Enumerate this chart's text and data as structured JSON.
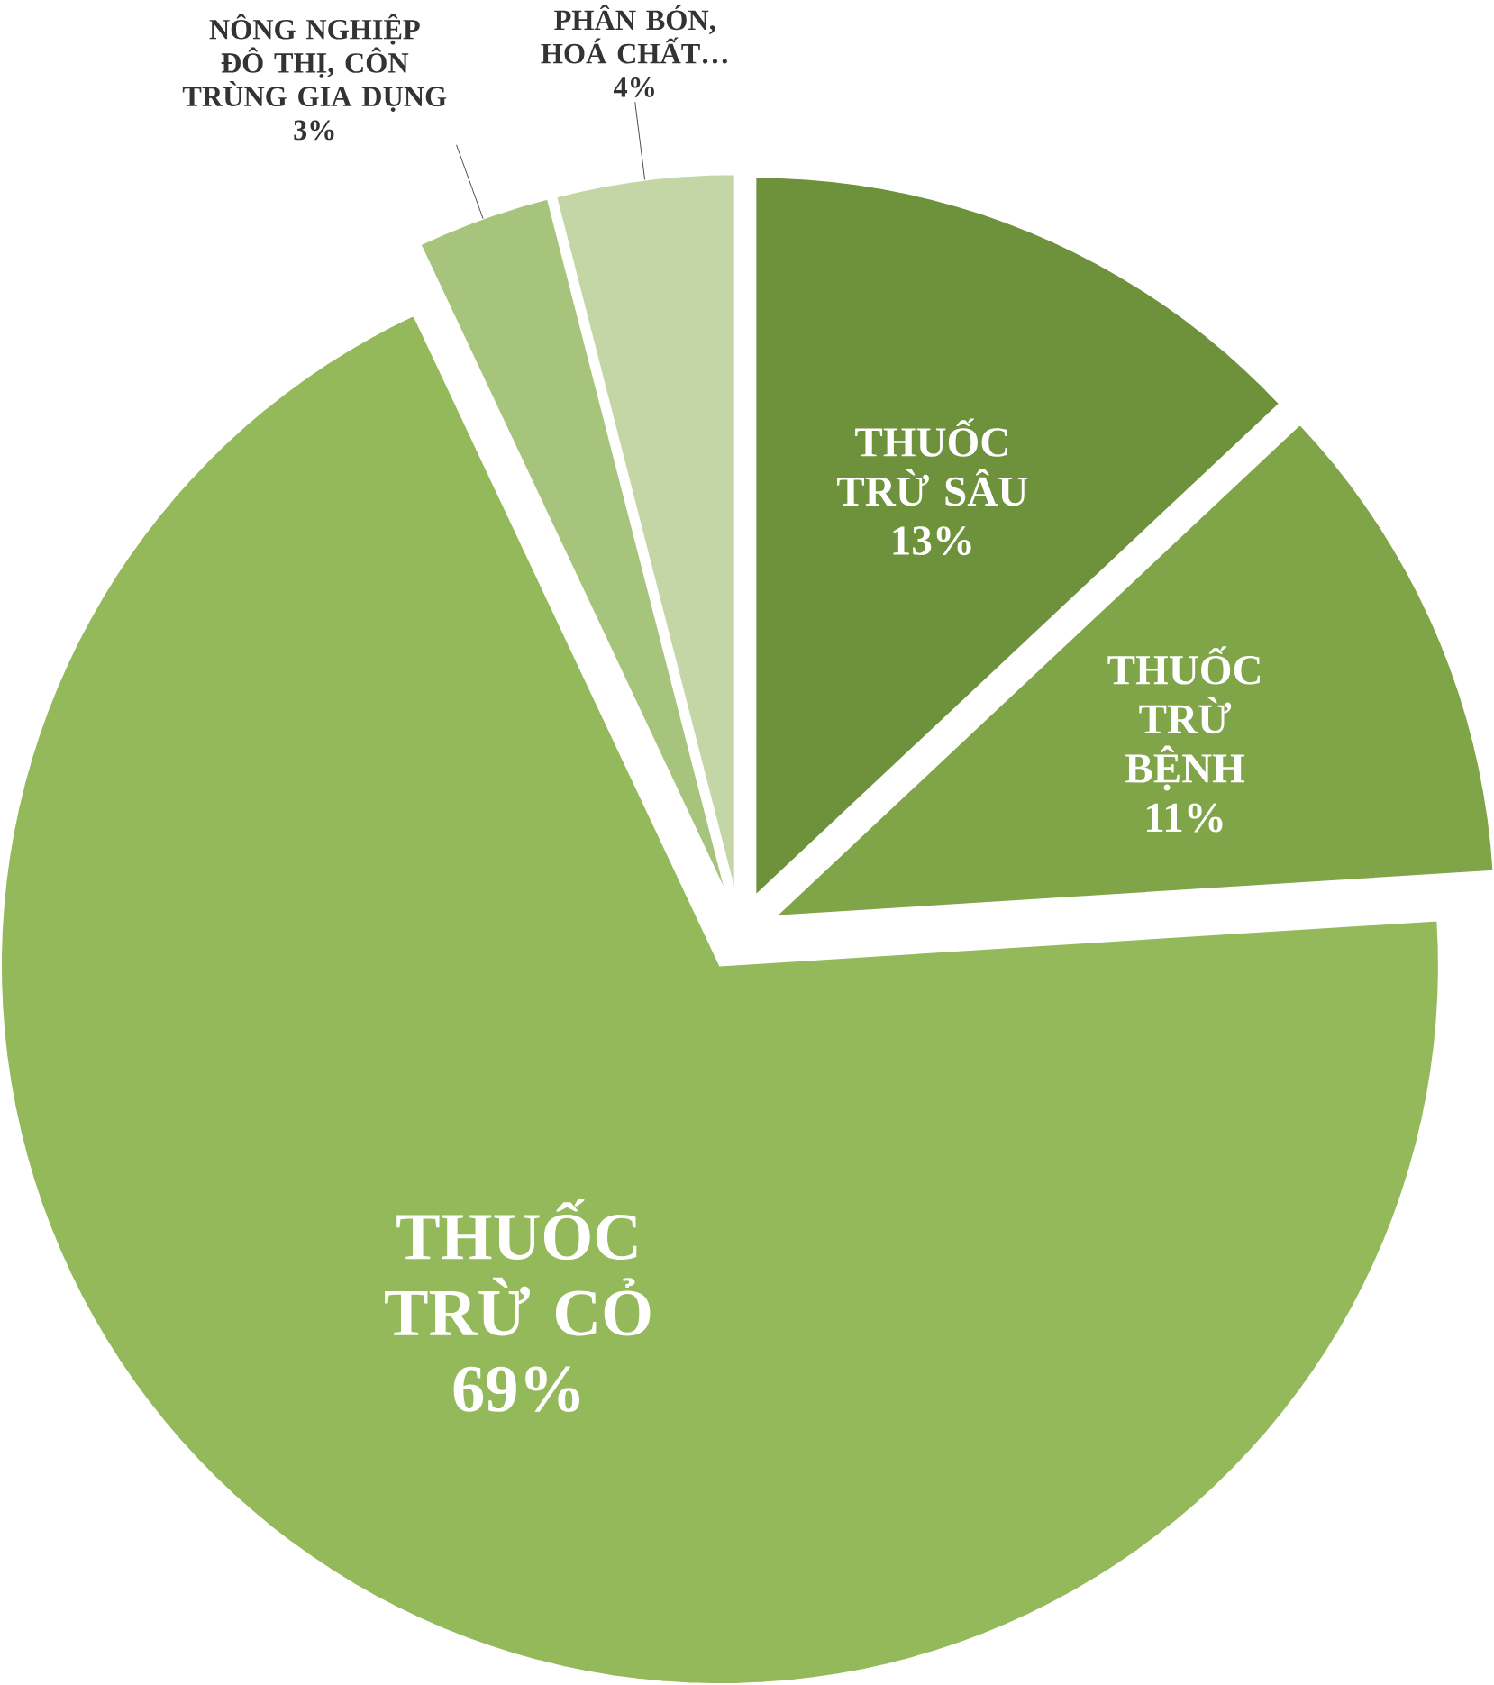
{
  "chart_data": {
    "type": "pie",
    "categories": [
      "THUỐC TRỪ SÂU",
      "THUỐC TRỪ BỆNH",
      "THUỐC TRỪ CỎ",
      "NÔNG NGHIỆP ĐÔ THỊ, CÔN TRÙNG GIA DỤNG",
      "PHÂN BÓN, HOÁ CHẤT…"
    ],
    "values": [
      13,
      11,
      69,
      3,
      4
    ],
    "value_labels": [
      "13%",
      "11%",
      "69%",
      "3%",
      "4%"
    ],
    "colors": [
      "#6e913c",
      "#80a448",
      "#94b95a",
      "#a7c47c",
      "#c4d5a6"
    ]
  }
}
